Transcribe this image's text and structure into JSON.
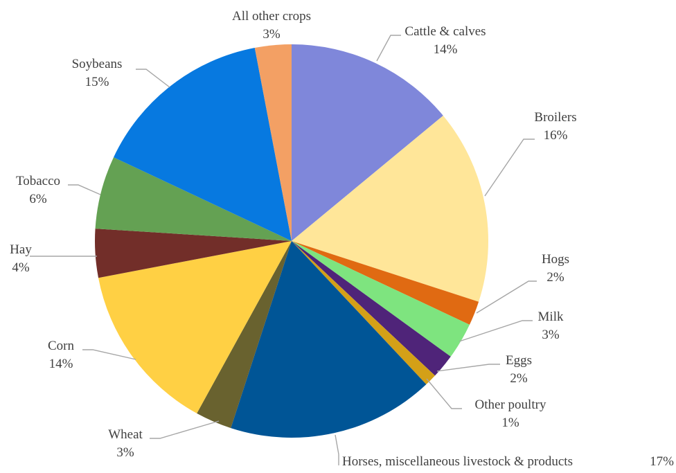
{
  "chart_data": {
    "type": "pie",
    "title": "",
    "slices": [
      {
        "label": "Cattle & calves",
        "value": 14,
        "value_label": "14%",
        "color": "#7f87da"
      },
      {
        "label": "Broilers",
        "value": 16,
        "value_label": "16%",
        "color": "#ffe699"
      },
      {
        "label": "Hogs",
        "value": 2,
        "value_label": "2%",
        "color": "#e06a12"
      },
      {
        "label": "Milk",
        "value": 3,
        "value_label": "3%",
        "color": "#7ee47f"
      },
      {
        "label": "Eggs",
        "value": 2,
        "value_label": "2%",
        "color": "#4f2479"
      },
      {
        "label": "Other poultry",
        "value": 1,
        "value_label": "1%",
        "color": "#d4a017"
      },
      {
        "label": "Horses, miscellaneous livestock & products",
        "value": 17,
        "value_label": "17%",
        "color": "#005596"
      },
      {
        "label": "Wheat",
        "value": 3,
        "value_label": "3%",
        "color": "#69622f"
      },
      {
        "label": "Corn",
        "value": 14,
        "value_label": "14%",
        "color": "#ffd044"
      },
      {
        "label": "Hay",
        "value": 4,
        "value_label": "4%",
        "color": "#722e29"
      },
      {
        "label": "Tobacco",
        "value": 6,
        "value_label": "6%",
        "color": "#64a153"
      },
      {
        "label": "Soybeans",
        "value": 15,
        "value_label": "15%",
        "color": "#0779e0"
      },
      {
        "label": "All other crops",
        "value": 3,
        "value_label": "3%",
        "color": "#f3a064"
      }
    ],
    "start_angle_deg": 0,
    "direction": "clockwise",
    "legend": "none"
  }
}
